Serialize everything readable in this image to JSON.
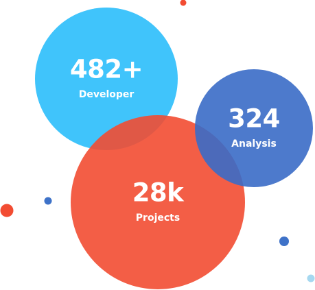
{
  "stats": [
    {
      "value": "482+",
      "label": "Developer"
    },
    {
      "value": "324",
      "label": "Analysis"
    },
    {
      "value": "28k",
      "label": "Projects"
    }
  ]
}
